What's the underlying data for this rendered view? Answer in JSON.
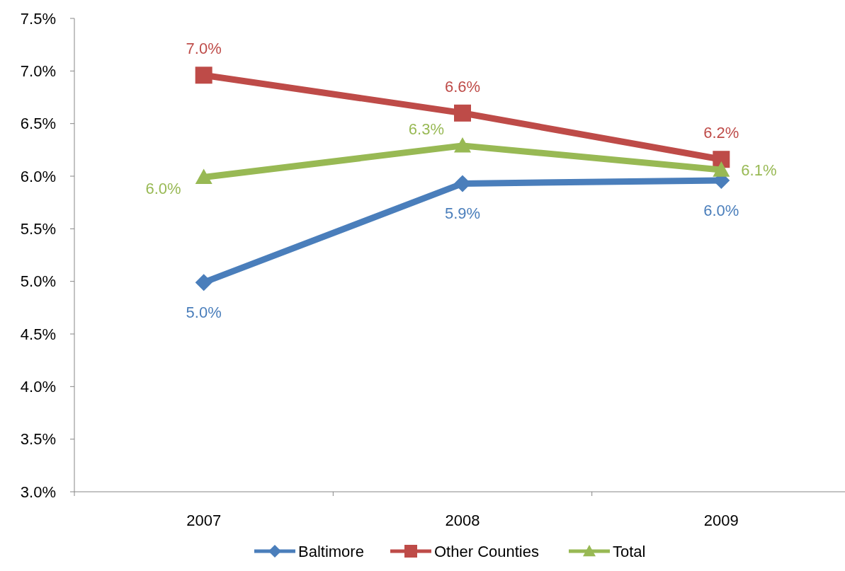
{
  "chart_data": {
    "type": "line",
    "categories": [
      "2007",
      "2008",
      "2009"
    ],
    "series": [
      {
        "name": "Baltimore",
        "color": "#4a7ebb",
        "marker": "diamond",
        "values": [
          4.99,
          5.93,
          5.96
        ],
        "value_labels": [
          "5.0%",
          "5.9%",
          "6.0%"
        ]
      },
      {
        "name": "Other Counties",
        "color": "#be4b48",
        "marker": "square",
        "values": [
          6.96,
          6.6,
          6.16
        ],
        "value_labels": [
          "7.0%",
          "6.6%",
          "6.2%"
        ]
      },
      {
        "name": "Total",
        "color": "#98b954",
        "marker": "triangle",
        "values": [
          5.99,
          6.29,
          6.06
        ],
        "value_labels": [
          "6.0%",
          "6.3%",
          "6.1%"
        ]
      }
    ],
    "ylim": [
      3.0,
      7.5
    ],
    "yticks": [
      {
        "value": 3.0,
        "label": "3.0%"
      },
      {
        "value": 3.5,
        "label": "3.5%"
      },
      {
        "value": 4.0,
        "label": "4.0%"
      },
      {
        "value": 4.5,
        "label": "4.5%"
      },
      {
        "value": 5.0,
        "label": "5.0%"
      },
      {
        "value": 5.5,
        "label": "5.5%"
      },
      {
        "value": 6.0,
        "label": "6.0%"
      },
      {
        "value": 6.5,
        "label": "6.5%"
      },
      {
        "value": 7.0,
        "label": "7.0%"
      },
      {
        "value": 7.5,
        "label": "7.5%"
      }
    ],
    "grid": false,
    "legend": "bottom"
  }
}
